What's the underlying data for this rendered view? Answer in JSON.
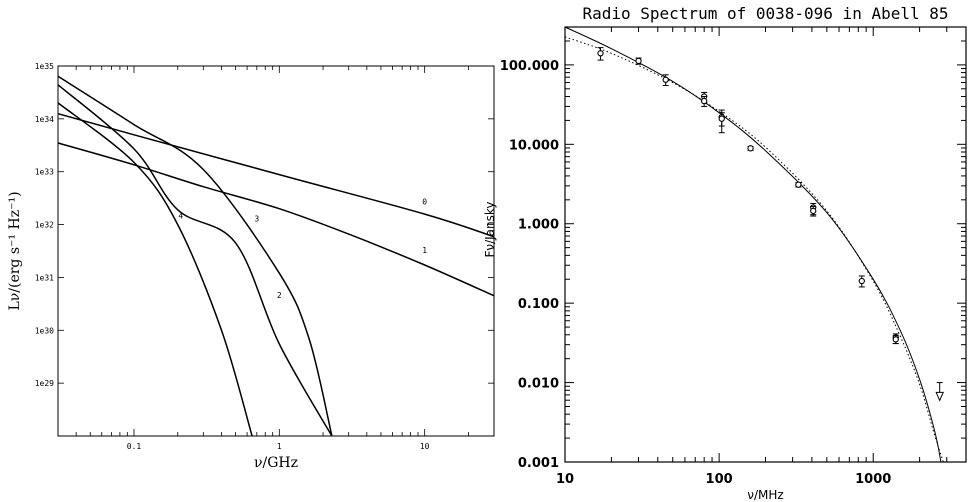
{
  "chart_data": [
    {
      "type": "line",
      "title": "",
      "xlabel": "ν/GHz",
      "ylabel": "Lν/(erg s⁻¹ Hz⁻¹)",
      "xscale": "log",
      "yscale": "log",
      "xlim": [
        0.03,
        30
      ],
      "ylim": [
        1e+28,
        1e+35
      ],
      "x_tick_labels": [
        "0.1",
        "1",
        "10"
      ],
      "y_tick_labels": [
        "1e29",
        "1e30",
        "1e31",
        "1e32",
        "1e33",
        "1e34",
        "1e35"
      ],
      "grid": false,
      "series": [
        {
          "name": "0",
          "x": [
            0.03,
            0.1,
            1,
            10,
            30
          ],
          "y": [
            1.25e+34,
            5e+33,
            8.8e+32,
            1.58e+32,
            5.9e+31
          ]
        },
        {
          "name": "1",
          "x": [
            0.03,
            0.1,
            0.3,
            1,
            3,
            10,
            30
          ],
          "y": [
            3.5e+33,
            1.35e+33,
            5.2e+32,
            2e+32,
            6.6e+31,
            1.72e+31,
            4.5e+30
          ]
        },
        {
          "name": "2",
          "x": [
            0.03,
            0.1,
            0.3,
            1,
            1.6,
            2.3
          ],
          "y": [
            6.4e+34,
            7.8e+33,
            1.1e+33,
            1.2e+31,
            7e+29,
            1e+28
          ]
        },
        {
          "name": "3",
          "x": [
            0.03,
            0.1,
            0.2,
            0.4,
            0.65
          ],
          "y": [
            2e+34,
            1.5e+33,
            1e+32,
            1e+30,
            1e+28
          ]
        },
        {
          "name": "4",
          "x": [
            0.03,
            0.1,
            0.2,
            0.5,
            1,
            2.3
          ],
          "y": [
            4.4e+34,
            2.7e+33,
            1.9e+32,
            4.5e+31,
            5.5e+29,
            1e+28
          ]
        }
      ],
      "curve_labels": [
        {
          "text": "0",
          "x": 10,
          "y": 2.4e+32
        },
        {
          "text": "1",
          "x": 10,
          "y": 2.9e+31
        },
        {
          "text": "2",
          "x": 1,
          "y": 4.1e+30
        },
        {
          "text": "3",
          "x": 0.7,
          "y": 1.15e+32
        },
        {
          "text": "4",
          "x": 0.21,
          "y": 1.3e+32
        }
      ]
    },
    {
      "type": "scatter",
      "title": "Radio Spectrum of 0038-096 in Abell 85",
      "xlabel": "ν/MHz",
      "ylabel": "Fν/Jansky",
      "xscale": "log",
      "yscale": "log",
      "xlim": [
        10,
        4000
      ],
      "ylim": [
        0.001,
        300
      ],
      "x_tick_labels": [
        "10",
        "100",
        "1000"
      ],
      "y_tick_labels": [
        "0.001",
        "0.010",
        "0.100",
        "1.000",
        "10.000",
        "100.000"
      ],
      "grid": false,
      "points": [
        {
          "x": 17,
          "y": 140,
          "err": [
            115,
            165
          ]
        },
        {
          "x": 30,
          "y": 112,
          "err": [
            102,
            122
          ]
        },
        {
          "x": 45,
          "y": 65,
          "err": [
            55,
            75
          ]
        },
        {
          "x": 80,
          "y": 40,
          "err": [
            35,
            45
          ]
        },
        {
          "x": 80,
          "y": 35,
          "err": [
            30,
            40
          ]
        },
        {
          "x": 104,
          "y": 22,
          "err": [
            14,
            27
          ]
        },
        {
          "x": 104,
          "y": 21,
          "err": [
            17,
            25
          ]
        },
        {
          "x": 160,
          "y": 8.9,
          "err": [
            8.4,
            9.4
          ]
        },
        {
          "x": 327,
          "y": 3.1,
          "err": [
            2.9,
            3.3
          ]
        },
        {
          "x": 408,
          "y": 1.6,
          "err": [
            1.3,
            1.8
          ]
        },
        {
          "x": 408,
          "y": 1.45,
          "err": [
            1.25,
            1.65
          ]
        },
        {
          "x": 843,
          "y": 0.19,
          "err": [
            0.16,
            0.22
          ]
        },
        {
          "x": 1400,
          "y": 0.037,
          "err": [
            0.031,
            0.041
          ]
        },
        {
          "x": 1400,
          "y": 0.035,
          "err": [
            0.031,
            0.039
          ]
        }
      ],
      "upper_limits": [
        {
          "x": 2700,
          "y": 0.0065,
          "bar_top": 0.01
        }
      ],
      "series": [
        {
          "name": "",
          "style": "solid",
          "x": [
            10,
            20,
            50,
            100,
            200,
            500,
            1000,
            1500,
            2000,
            2500,
            2750
          ],
          "y": [
            300,
            160,
            62,
            25,
            8.3,
            1.38,
            0.2,
            0.045,
            0.011,
            0.0025,
            0.001
          ]
        },
        {
          "name": "",
          "style": "dotted",
          "x": [
            10,
            20,
            50,
            100,
            200,
            500,
            1000,
            1500,
            2000,
            2500,
            2850
          ],
          "y": [
            225,
            140,
            60,
            26,
            9.2,
            1.45,
            0.19,
            0.038,
            0.0095,
            0.0022,
            0.001
          ]
        }
      ]
    }
  ]
}
